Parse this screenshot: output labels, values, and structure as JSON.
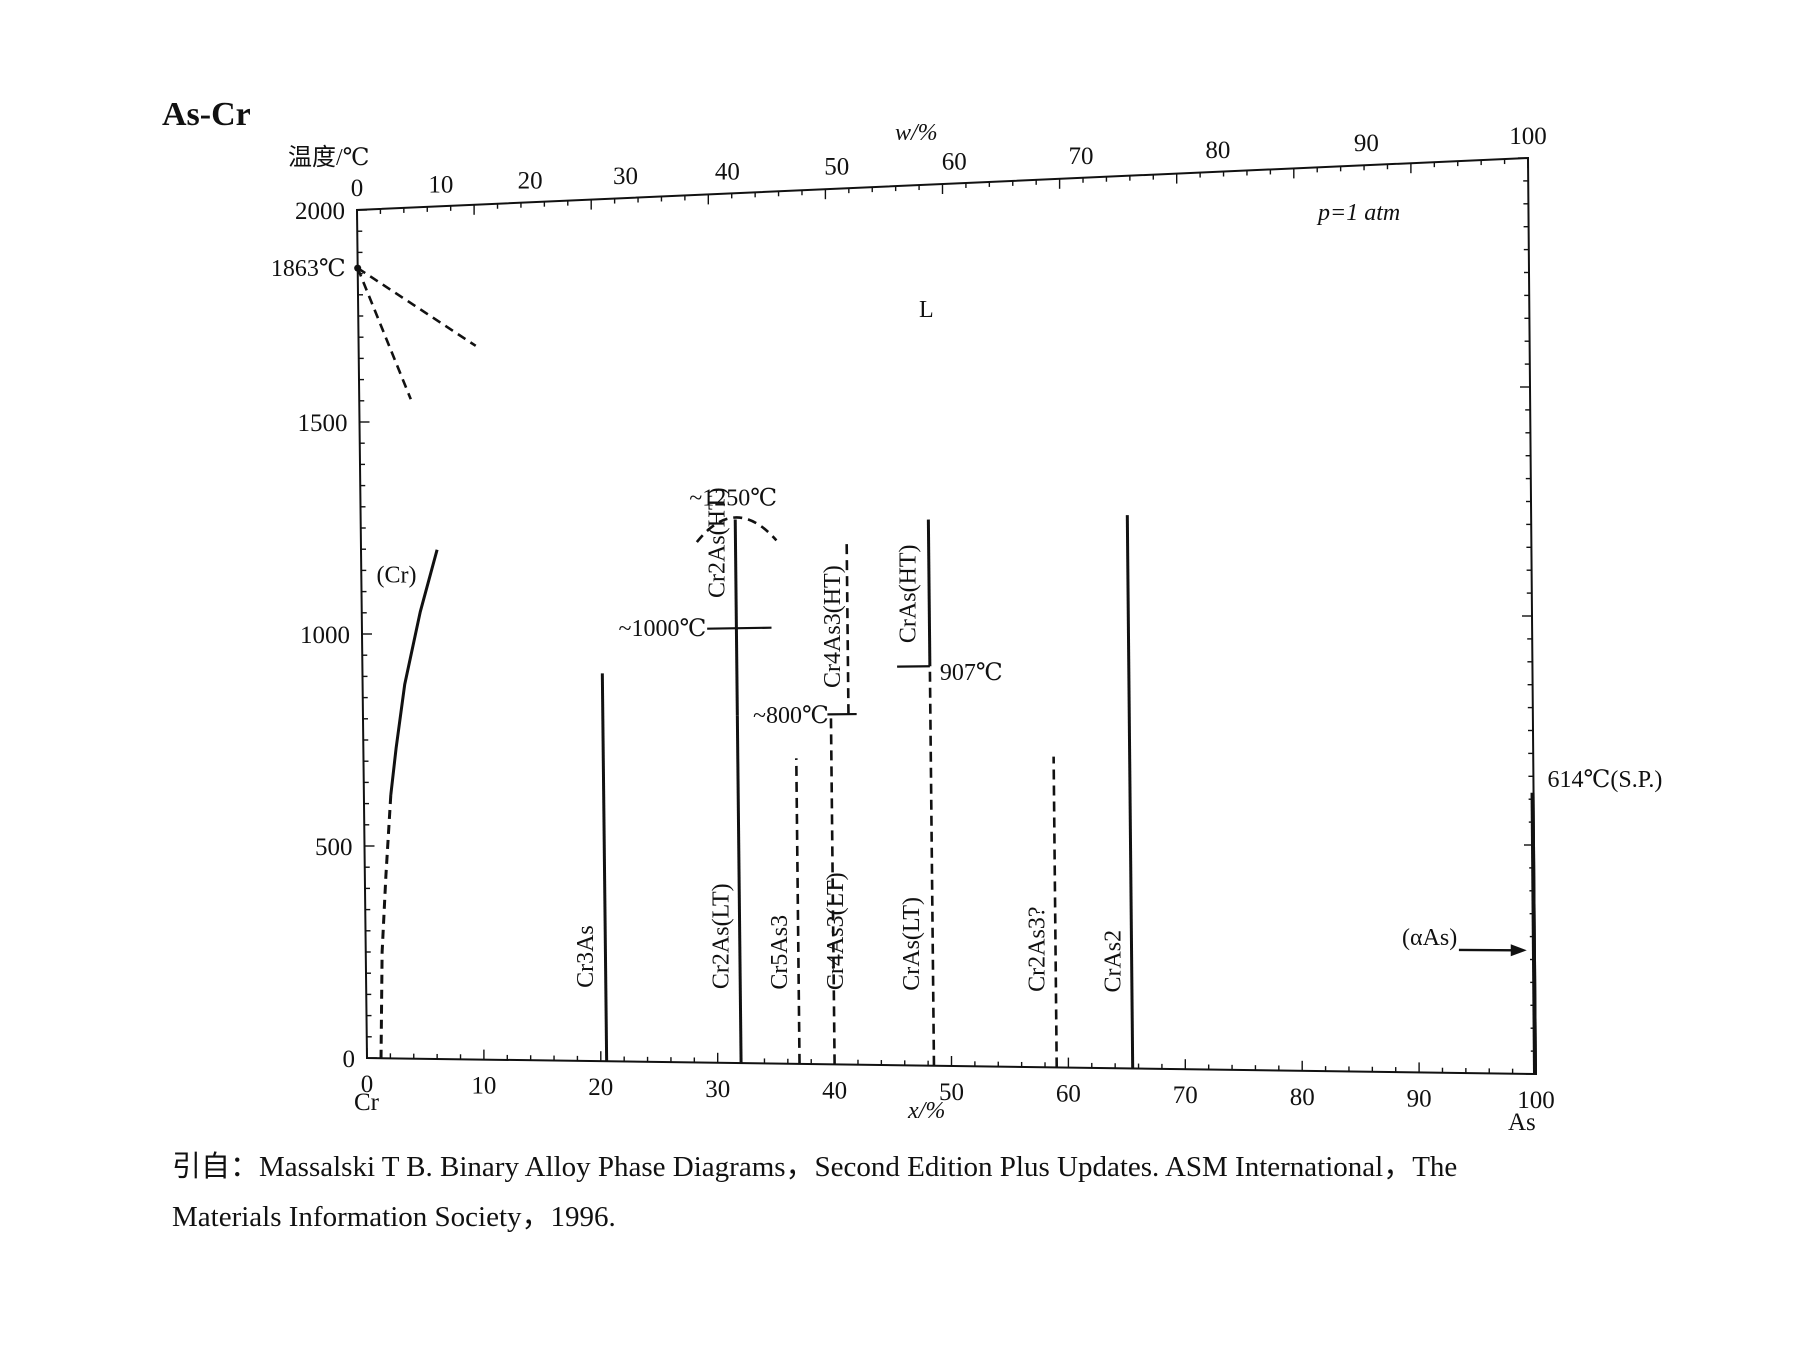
{
  "chart_data": {
    "type": "phase-diagram",
    "title": "As-Cr",
    "ylabel": "温度/℃",
    "xlabel_bottom": "x/%",
    "xlabel_top": "w/%",
    "left_element": "Cr",
    "right_element": "As",
    "ylim": [
      0,
      2000
    ],
    "xlim": [
      0,
      100
    ],
    "yticks": [
      0,
      500,
      1000,
      1500,
      2000
    ],
    "xticks_bottom": [
      0,
      10,
      20,
      30,
      40,
      50,
      60,
      70,
      80,
      90,
      100
    ],
    "xticks_top": [
      0,
      10,
      20,
      30,
      40,
      50,
      60,
      70,
      80,
      90,
      100
    ],
    "pressure_note": "p=1 atm",
    "phase_regions": [
      {
        "label": "L",
        "x": 48.5,
        "y": 1700
      },
      {
        "label": "(Cr)",
        "x": 3,
        "y": 1120
      },
      {
        "label": "(αAs)",
        "x": 91,
        "y": 280
      }
    ],
    "compounds": [
      {
        "formula": "Cr3As",
        "x": 20.5,
        "t_min": 0,
        "t_max": 900,
        "style": "solid"
      },
      {
        "formula": "Cr2As(LT)",
        "x": 32.0,
        "t_min": 0,
        "t_max": 800,
        "style": "solid"
      },
      {
        "formula": "Cr2As(HT)",
        "x": 32.0,
        "t_min": 800,
        "t_max": 1250,
        "style": "solid"
      },
      {
        "formula": "Cr5As3",
        "x": 37.0,
        "t_min": 0,
        "t_max": 700,
        "style": "dashed"
      },
      {
        "formula": "Cr4As3(LT)",
        "x": 40.0,
        "t_min": 0,
        "t_max": 800,
        "style": "dashed"
      },
      {
        "formula": "Cr4As3(HT)",
        "x": 41.5,
        "t_min": 800,
        "t_max": 1200,
        "style": "dashed"
      },
      {
        "formula": "CrAs(LT)",
        "x": 48.5,
        "t_min": 0,
        "t_max": 907,
        "style": "dashed"
      },
      {
        "formula": "CrAs(HT)",
        "x": 48.5,
        "t_min": 907,
        "t_max": 1240,
        "style": "solid"
      },
      {
        "formula": "Cr2As3?",
        "x": 59.0,
        "t_min": 0,
        "t_max": 700,
        "style": "dashed"
      },
      {
        "formula": "CrAs2",
        "x": 65.5,
        "t_min": 0,
        "t_max": 1240,
        "style": "solid"
      }
    ],
    "annotations": [
      {
        "text": "1863℃",
        "x": 0,
        "y": 1863
      },
      {
        "text": "~1250℃",
        "x": 32.0,
        "y": 1250
      },
      {
        "text": "~1000℃",
        "x": 32.0,
        "y": 1000
      },
      {
        "text": "~800℃",
        "x": 33.0,
        "y": 800
      },
      {
        "text": "907℃",
        "x": 48.5,
        "y": 907
      },
      {
        "text": "614℃(S.P.)",
        "x": 100,
        "y": 614
      }
    ]
  },
  "citation": {
    "line1": "引自：Massalski T B.  Binary Alloy Phase Diagrams，Second Edition Plus Updates.  ASM International，The",
    "line2": "Materials Information Society，1996."
  }
}
